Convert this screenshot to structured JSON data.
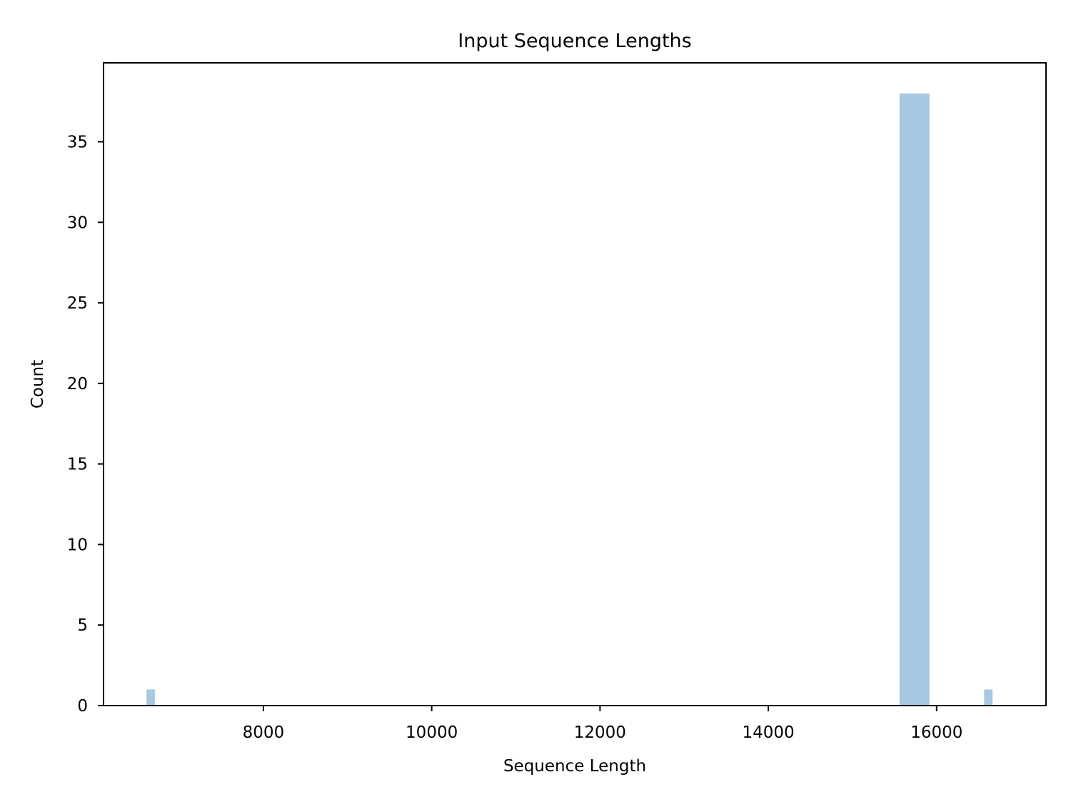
{
  "chart_data": {
    "type": "bar",
    "subtype": "histogram",
    "title": "Input Sequence Lengths",
    "xlabel": "Sequence Length",
    "ylabel": "Count",
    "xlim": [
      6100,
      17300
    ],
    "ylim": [
      0,
      39.9
    ],
    "xticks": [
      8000,
      10000,
      12000,
      14000,
      16000
    ],
    "yticks": [
      0,
      5,
      10,
      15,
      20,
      25,
      30,
      35
    ],
    "grid": false,
    "bar_color": "#a6c8e0",
    "bins": [
      {
        "x_start": 6610,
        "x_end": 6710,
        "count": 1
      },
      {
        "x_start": 15560,
        "x_end": 15915,
        "count": 38
      },
      {
        "x_start": 16565,
        "x_end": 16665,
        "count": 1
      }
    ]
  }
}
